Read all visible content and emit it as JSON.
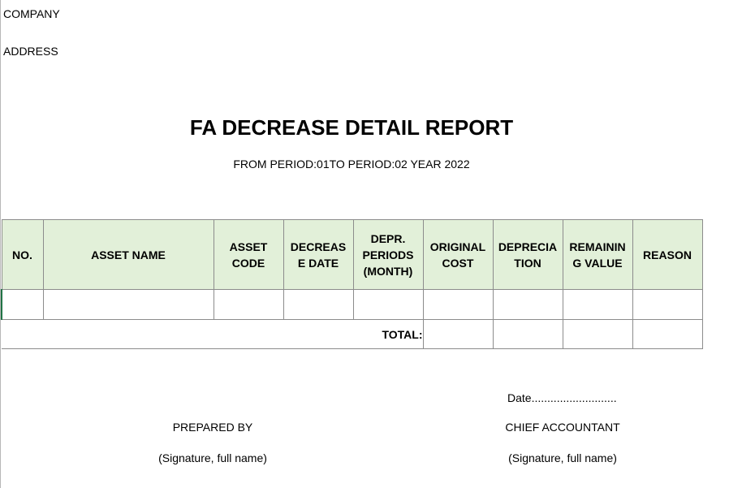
{
  "header": {
    "company": "COMPANY",
    "address": "ADDRESS"
  },
  "report": {
    "title": "FA DECREASE DETAIL REPORT",
    "subtitle": "FROM PERIOD:01TO PERIOD:02 YEAR 2022"
  },
  "table": {
    "columns": [
      "NO.",
      "ASSET NAME",
      "ASSET\nCODE",
      "DECREAS\nE DATE",
      "DEPR.\nPERIODS\n(MONTH)",
      "ORIGINAL\nCOST",
      "DEPRECIA\nTION",
      "REMAININ\nG VALUE",
      "REASON"
    ],
    "total_label": "TOTAL:"
  },
  "footer": {
    "date": "Date...........................",
    "prepared_by": "PREPARED BY",
    "prepared_sign": "(Signature, full name)",
    "chief_accountant": "CHIEF ACCOUNTANT",
    "chief_sign": "(Signature, full name)"
  }
}
